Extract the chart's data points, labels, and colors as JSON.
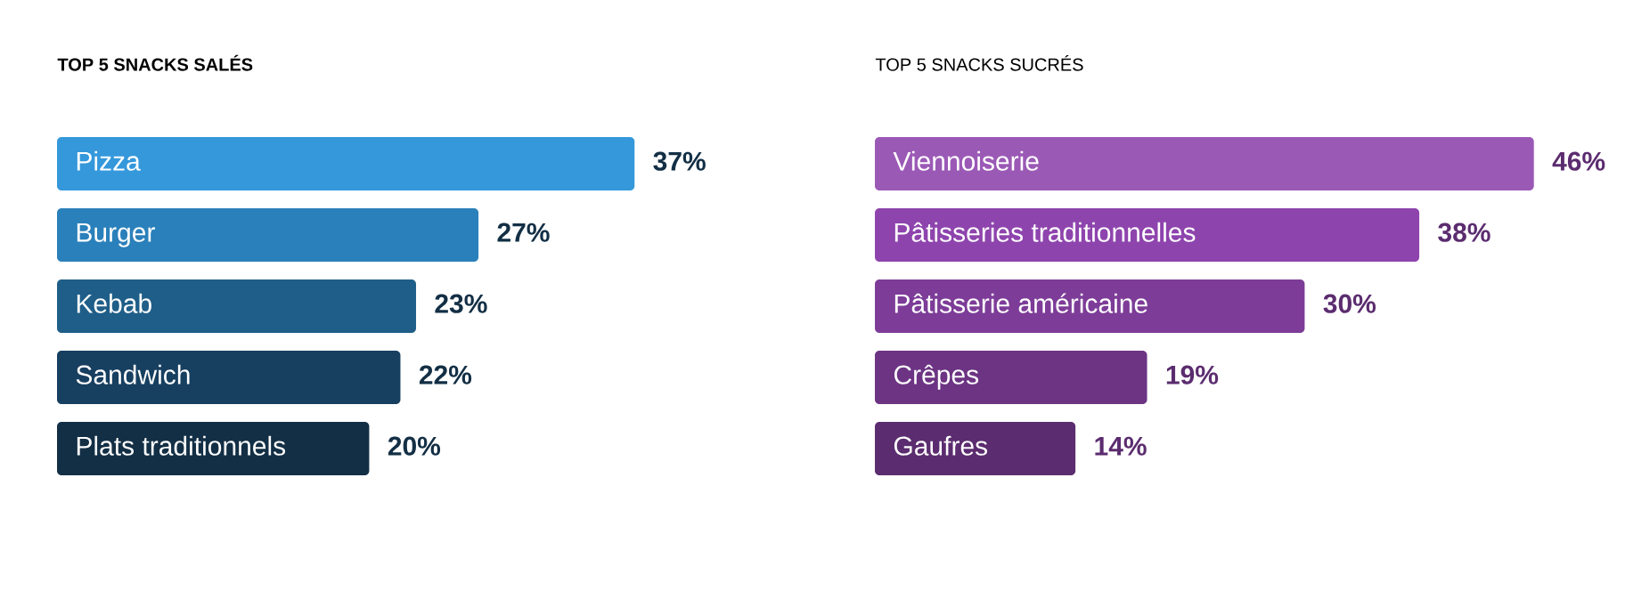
{
  "chart_data": [
    {
      "type": "bar",
      "orientation": "horizontal",
      "title": "TOP 5 SNACKS SALÉS",
      "categories": [
        "Pizza",
        "Burger",
        "Kebab",
        "Sandwich",
        "Plats traditionnels"
      ],
      "values": [
        37,
        27,
        23,
        22,
        20
      ],
      "value_labels": [
        "37%",
        "27%",
        "23%",
        "22%",
        "20%"
      ],
      "colors": [
        "#3498db",
        "#2a80ba",
        "#1f5e88",
        "#173f60",
        "#132f45"
      ]
    },
    {
      "type": "bar",
      "orientation": "horizontal",
      "title": "TOP 5 SNACKS SUCRÉS",
      "categories": [
        "Viennoiserie",
        "Pâtisseries traditionnelles",
        "Pâtisserie américaine",
        "Crêpes",
        "Gaufres"
      ],
      "values": [
        46,
        38,
        30,
        19,
        14
      ],
      "value_labels": [
        "46%",
        "38%",
        "30%",
        "19%",
        "14%"
      ],
      "colors": [
        "#9b59b6",
        "#8e44ad",
        "#7d3c98",
        "#6c3483",
        "#5b2c6f"
      ]
    }
  ]
}
